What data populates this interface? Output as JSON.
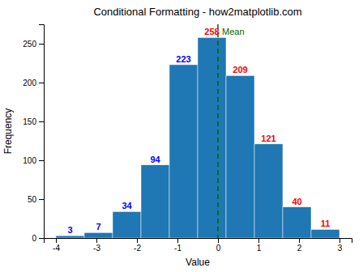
{
  "chart_data": {
    "type": "histogram",
    "title": "Conditional Formatting - how2matplotlib.com",
    "xlabel": "Value",
    "ylabel": "Frequency",
    "bins": [
      -4.0,
      -3.3,
      -2.6,
      -1.9,
      -1.2,
      -0.5,
      0.2,
      0.9,
      1.6,
      2.3,
      3.0
    ],
    "values": [
      3,
      7,
      34,
      94,
      223,
      258,
      209,
      121,
      40,
      11
    ],
    "color": "#1f77b4",
    "data_labels": true,
    "label_colors": [
      "blue",
      "blue",
      "blue",
      "blue",
      "blue",
      "red",
      "red",
      "red",
      "red",
      "red"
    ],
    "annotations": [
      {
        "type": "vline",
        "x": 0.0,
        "text": "Mean",
        "color": "darkgreen",
        "line_style": "dashed"
      }
    ],
    "xlim": [
      -4.3,
      3.3
    ],
    "xticks": [
      -4,
      -3,
      -2,
      -1,
      0,
      1,
      2,
      3
    ],
    "ylim": [
      0,
      275
    ],
    "yticks": [
      0,
      50,
      100,
      150,
      200,
      250
    ],
    "grid": false
  }
}
